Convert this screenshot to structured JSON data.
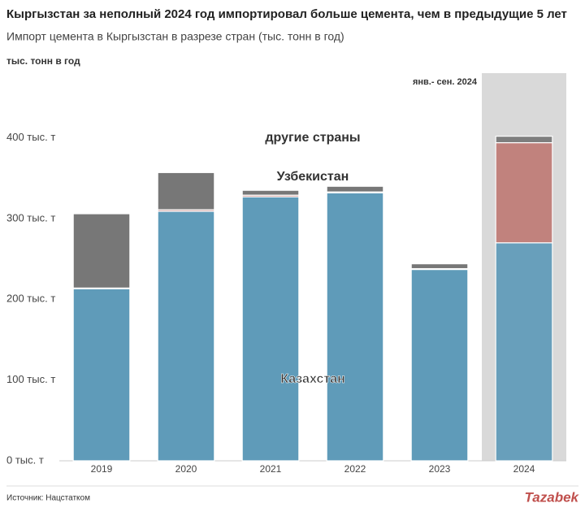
{
  "chart_data": {
    "type": "stacked_bar",
    "title": "Кыргызстан за неполный 2024 год импортировал больше цемента, чем в предыдущие 5 лет",
    "subtitle": "Импорт цемента в Кыргызстан в разрезе стран (тыс. тонн в год)",
    "y_label": "тыс. тонн в год",
    "categories": [
      "2019",
      "2020",
      "2021",
      "2022",
      "2023",
      "2024"
    ],
    "series": [
      {
        "name": "Казахстан",
        "color": "#5f9bb9",
        "values": [
          213,
          309,
          327,
          332,
          237,
          270
        ]
      },
      {
        "name": "Узбекистан",
        "color": "#c07b76",
        "values": [
          1,
          2,
          2,
          1,
          1,
          124
        ]
      },
      {
        "name": "другие страны",
        "color": "#777777",
        "values": [
          92,
          46,
          6,
          7,
          6,
          8
        ]
      }
    ],
    "ylim": [
      0,
      460
    ],
    "yticks": [
      {
        "value": 0,
        "label": "0 тыс. т"
      },
      {
        "value": 100,
        "label": "100 тыс. т"
      },
      {
        "value": 200,
        "label": "200 тыс. т"
      },
      {
        "value": 300,
        "label": "300 тыс. т"
      },
      {
        "value": 400,
        "label": "400 тыс. т"
      }
    ],
    "highlight_category": "2024",
    "annotation": "янв.- сен. 2024",
    "source": "Источник: Нацстатком",
    "logo": "Tazabek"
  }
}
